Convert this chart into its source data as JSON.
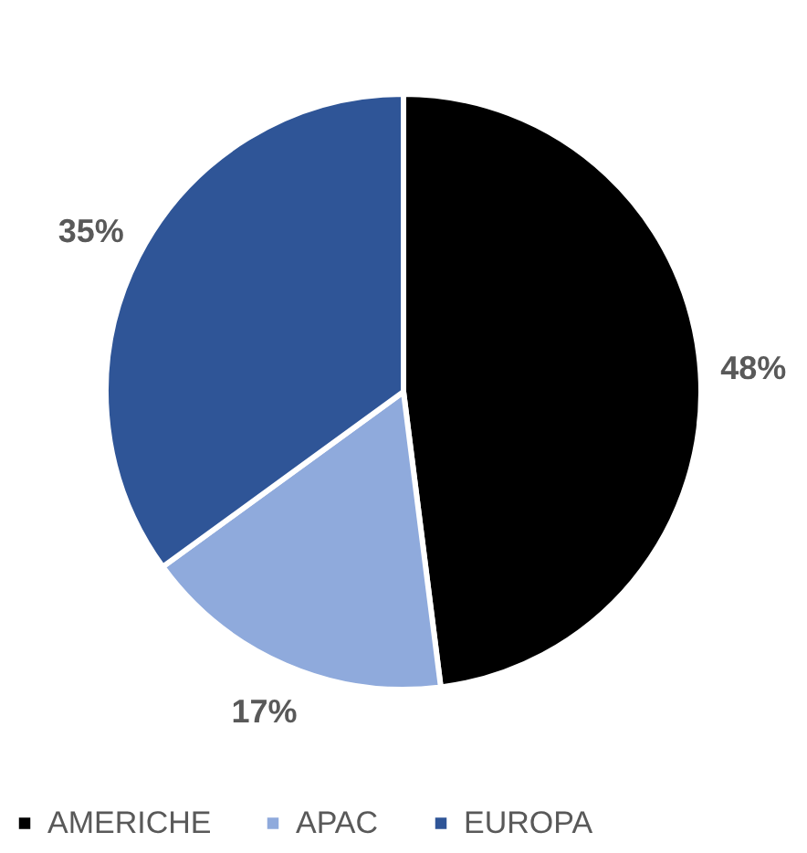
{
  "chart_data": {
    "type": "pie",
    "categories": [
      "AMERICHE",
      "APAC",
      "EUROPA"
    ],
    "values": [
      48,
      17,
      35
    ],
    "colors": [
      "#000000",
      "#8faadc",
      "#2f5597"
    ],
    "value_labels": [
      "48%",
      "17%",
      "35%"
    ],
    "legend": "bottom"
  }
}
